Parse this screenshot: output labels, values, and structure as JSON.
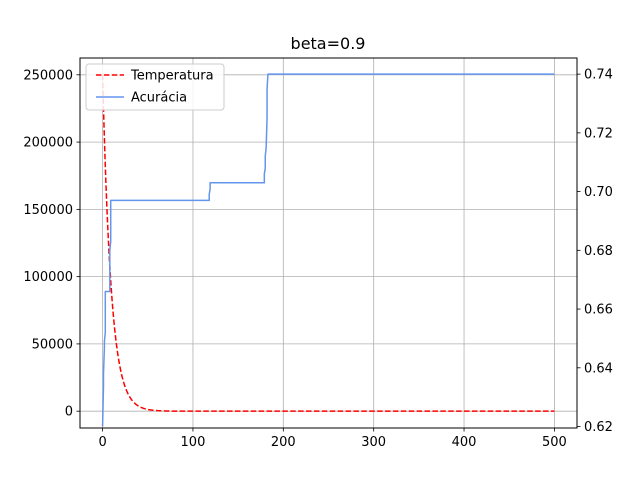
{
  "chart_data": {
    "type": "line",
    "title": "beta=0.9",
    "xlabel": "",
    "ylabel": "",
    "ylabel_right": "",
    "xlim": [
      -25,
      525
    ],
    "ylim": [
      -12500,
      262500
    ],
    "ylim_right": [
      0.6195,
      0.7455
    ],
    "xticks": [
      0,
      100,
      200,
      300,
      400,
      500
    ],
    "yticks": [
      0,
      50000,
      100000,
      150000,
      200000,
      250000
    ],
    "yticks_right": [
      0.62,
      0.64,
      0.66,
      0.68,
      0.7,
      0.72,
      0.74
    ],
    "grid": true,
    "legend_placement": "top-left",
    "series": [
      {
        "name": "Temperatura",
        "axis": "left",
        "color": "#ff0000",
        "style": "dashed",
        "function": "250000 * 0.9^x",
        "x_range": [
          0,
          500
        ],
        "start_value": 250000,
        "decay_factor": 0.9
      },
      {
        "name": "Acurácia",
        "axis": "right",
        "color": "#6495ed",
        "style": "solid",
        "x": [
          0,
          1,
          1,
          2,
          2,
          3,
          3,
          8,
          8,
          9,
          9,
          118,
          118,
          119,
          119,
          120,
          120,
          179,
          179,
          180,
          180,
          181,
          181,
          182,
          182,
          183,
          183,
          500
        ],
        "y": [
          0.62,
          0.634,
          0.638,
          0.647,
          0.649,
          0.652,
          0.666,
          0.666,
          0.68,
          0.683,
          0.697,
          0.697,
          0.699,
          0.701,
          0.703,
          0.703,
          0.703,
          0.703,
          0.706,
          0.708,
          0.712,
          0.715,
          0.715,
          0.725,
          0.735,
          0.74,
          0.74,
          0.74
        ]
      }
    ]
  }
}
